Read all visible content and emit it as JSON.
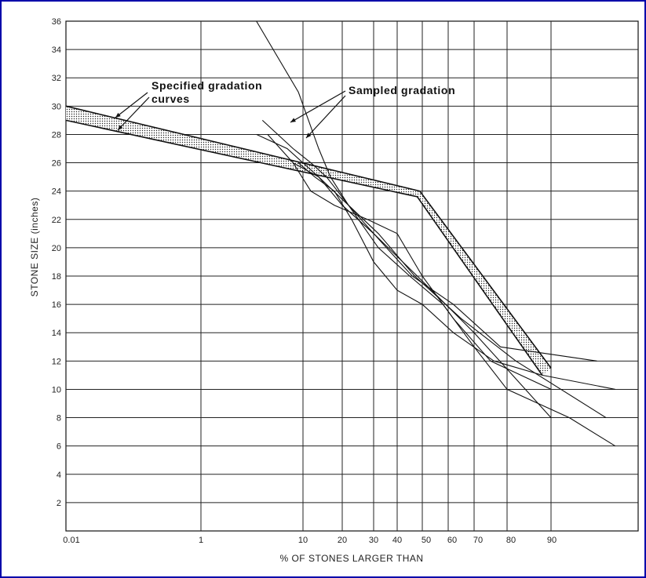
{
  "chart_data": {
    "type": "line",
    "title": "",
    "xlabel": "% OF STONES LARGER THAN",
    "ylabel": "STONE SIZE  (inches)",
    "x_scale": "probability",
    "xlim": [
      0.01,
      99.5
    ],
    "ylim": [
      0,
      36
    ],
    "x_tick_labels": [
      "0.01",
      "1",
      "10",
      "20",
      "30",
      "40",
      "50",
      "60",
      "70",
      "80",
      "90"
    ],
    "y_tick_labels": [
      "2",
      "4",
      "6",
      "8",
      "10",
      "12",
      "14",
      "16",
      "18",
      "20",
      "22",
      "24",
      "26",
      "28",
      "30",
      "32",
      "34",
      "36"
    ],
    "grid": true,
    "annotations": [
      {
        "text": "Specified gradation"
      },
      {
        "text": "curves"
      },
      {
        "text": "Sampled gradation"
      }
    ],
    "specified_band": {
      "upper": [
        [
          0.01,
          30.0
        ],
        [
          49,
          24.0
        ],
        [
          90,
          11.5
        ]
      ],
      "lower": [
        [
          0.01,
          29.0
        ],
        [
          48,
          23.6
        ],
        [
          88,
          11.0
        ]
      ]
    },
    "series": [
      {
        "points": [
          [
            3.5,
            36
          ],
          [
            9,
            31
          ],
          [
            14,
            27
          ],
          [
            17,
            25
          ],
          [
            22,
            23
          ],
          [
            30,
            21
          ],
          [
            48,
            18
          ],
          [
            70,
            14
          ],
          [
            90,
            8
          ]
        ]
      },
      {
        "points": [
          [
            4,
            29
          ],
          [
            8,
            27
          ],
          [
            12,
            26
          ],
          [
            16,
            25
          ],
          [
            22,
            23
          ],
          [
            32,
            21
          ],
          [
            47,
            18
          ],
          [
            65,
            15
          ],
          [
            82,
            12
          ],
          [
            96,
            8
          ]
        ]
      },
      {
        "points": [
          [
            3.5,
            28
          ],
          [
            7,
            27
          ],
          [
            10,
            26
          ],
          [
            14,
            25
          ],
          [
            20,
            23
          ],
          [
            30,
            21
          ],
          [
            46,
            18
          ],
          [
            62,
            16
          ],
          [
            78,
            13
          ],
          [
            95,
            12
          ]
        ]
      },
      {
        "points": [
          [
            4.5,
            28
          ],
          [
            8,
            26
          ],
          [
            12,
            24
          ],
          [
            18,
            23
          ],
          [
            28,
            22
          ],
          [
            40,
            21
          ],
          [
            50,
            18
          ],
          [
            62,
            15
          ],
          [
            75,
            12
          ],
          [
            90,
            10
          ]
        ]
      },
      {
        "points": [
          [
            9,
            26
          ],
          [
            13,
            25
          ],
          [
            18,
            24
          ],
          [
            23,
            22
          ],
          [
            30,
            19
          ],
          [
            40,
            17
          ],
          [
            50,
            16
          ],
          [
            62,
            14
          ],
          [
            76,
            12
          ],
          [
            88,
            11
          ],
          [
            97,
            10
          ]
        ]
      },
      {
        "points": [
          [
            8,
            26
          ],
          [
            14,
            25
          ],
          [
            22,
            23
          ],
          [
            32,
            20
          ],
          [
            45,
            18
          ],
          [
            58,
            16
          ],
          [
            70,
            13
          ],
          [
            80,
            10
          ],
          [
            92,
            8
          ],
          [
            97,
            6
          ]
        ]
      }
    ]
  }
}
